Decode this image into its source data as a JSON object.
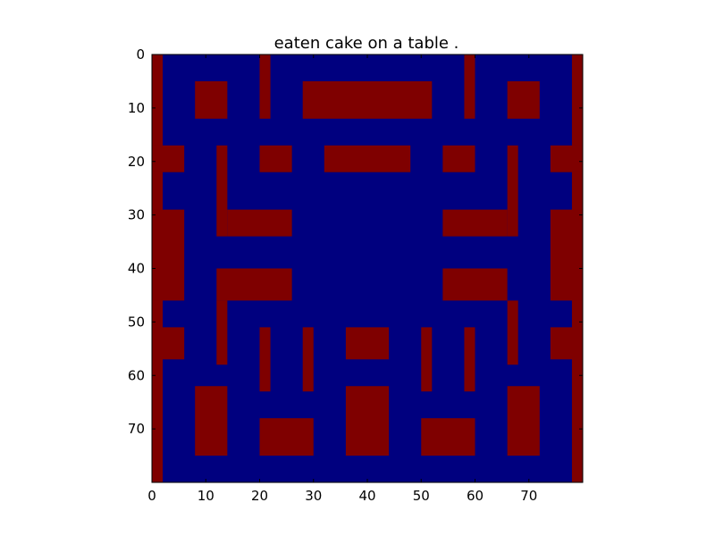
{
  "chart_data": {
    "type": "heatmap",
    "title": "eaten cake on a table .",
    "xlabel": "",
    "ylabel": "",
    "xlim": [
      0,
      80
    ],
    "ylim": [
      0,
      80
    ],
    "x_ticks": [
      "0",
      "10",
      "20",
      "30",
      "40",
      "50",
      "60",
      "70"
    ],
    "y_ticks": [
      "0",
      "10",
      "20",
      "30",
      "40",
      "50",
      "60",
      "70"
    ],
    "colormap": "jet",
    "grid": false,
    "image_description_cells": {
      "background_value": 0.0,
      "wall_value": 1.0,
      "regions": [
        {
          "x": [
            0,
            2
          ],
          "y": [
            0,
            80
          ],
          "value": 1.0
        },
        {
          "x": [
            78,
            80
          ],
          "y": [
            0,
            80
          ],
          "value": 1.0
        },
        {
          "x": [
            8,
            14
          ],
          "y": [
            5,
            12
          ],
          "value": 1.0
        },
        {
          "x": [
            20,
            22
          ],
          "y": [
            0,
            12
          ],
          "value": 1.0
        },
        {
          "x": [
            28,
            52
          ],
          "y": [
            5,
            12
          ],
          "value": 1.0
        },
        {
          "x": [
            58,
            60
          ],
          "y": [
            0,
            12
          ],
          "value": 1.0
        },
        {
          "x": [
            66,
            72
          ],
          "y": [
            5,
            12
          ],
          "value": 1.0
        },
        {
          "x": [
            0,
            6
          ],
          "y": [
            17,
            22
          ],
          "value": 1.0
        },
        {
          "x": [
            12,
            14
          ],
          "y": [
            17,
            34
          ],
          "value": 1.0
        },
        {
          "x": [
            20,
            26
          ],
          "y": [
            17,
            22
          ],
          "value": 1.0
        },
        {
          "x": [
            32,
            48
          ],
          "y": [
            17,
            22
          ],
          "value": 1.0
        },
        {
          "x": [
            54,
            60
          ],
          "y": [
            17,
            22
          ],
          "value": 1.0
        },
        {
          "x": [
            66,
            68
          ],
          "y": [
            17,
            34
          ],
          "value": 1.0
        },
        {
          "x": [
            74,
            80
          ],
          "y": [
            17,
            22
          ],
          "value": 1.0
        },
        {
          "x": [
            14,
            26
          ],
          "y": [
            29,
            34
          ],
          "value": 1.0
        },
        {
          "x": [
            54,
            66
          ],
          "y": [
            29,
            34
          ],
          "value": 1.0
        },
        {
          "x": [
            0,
            6
          ],
          "y": [
            29,
            40
          ],
          "value": 1.0
        },
        {
          "x": [
            74,
            80
          ],
          "y": [
            29,
            40
          ],
          "value": 1.0
        },
        {
          "x": [
            12,
            26
          ],
          "y": [
            40,
            46
          ],
          "value": 1.0
        },
        {
          "x": [
            54,
            66
          ],
          "y": [
            40,
            46
          ],
          "value": 1.0
        },
        {
          "x": [
            0,
            6
          ],
          "y": [
            40,
            46
          ],
          "value": 1.0
        },
        {
          "x": [
            74,
            80
          ],
          "y": [
            40,
            46
          ],
          "value": 1.0
        },
        {
          "x": [
            12,
            14
          ],
          "y": [
            46,
            58
          ],
          "value": 1.0
        },
        {
          "x": [
            66,
            68
          ],
          "y": [
            46,
            58
          ],
          "value": 1.0
        },
        {
          "x": [
            0,
            6
          ],
          "y": [
            51,
            57
          ],
          "value": 1.0
        },
        {
          "x": [
            74,
            80
          ],
          "y": [
            51,
            57
          ],
          "value": 1.0
        },
        {
          "x": [
            20,
            22
          ],
          "y": [
            51,
            63
          ],
          "value": 1.0
        },
        {
          "x": [
            28,
            30
          ],
          "y": [
            51,
            63
          ],
          "value": 1.0
        },
        {
          "x": [
            36,
            44
          ],
          "y": [
            51,
            57
          ],
          "value": 1.0
        },
        {
          "x": [
            50,
            52
          ],
          "y": [
            51,
            63
          ],
          "value": 1.0
        },
        {
          "x": [
            58,
            60
          ],
          "y": [
            51,
            63
          ],
          "value": 1.0
        },
        {
          "x": [
            8,
            14
          ],
          "y": [
            62,
            75
          ],
          "value": 1.0
        },
        {
          "x": [
            20,
            30
          ],
          "y": [
            68,
            75
          ],
          "value": 1.0
        },
        {
          "x": [
            36,
            44
          ],
          "y": [
            62,
            75
          ],
          "value": 1.0
        },
        {
          "x": [
            50,
            60
          ],
          "y": [
            68,
            75
          ],
          "value": 1.0
        },
        {
          "x": [
            66,
            72
          ],
          "y": [
            62,
            75
          ],
          "value": 1.0
        }
      ]
    }
  }
}
